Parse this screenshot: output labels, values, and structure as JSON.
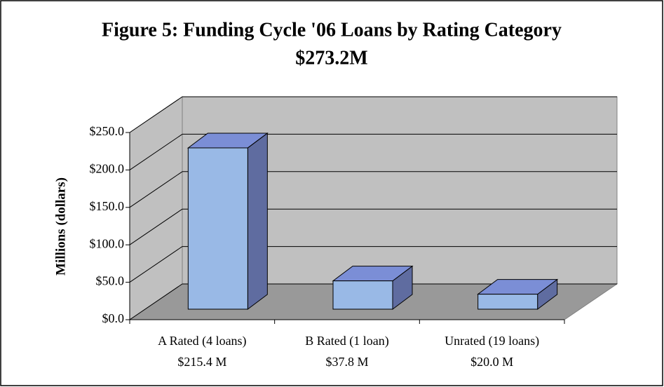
{
  "chart_data": {
    "type": "bar3d",
    "title": "Figure 5: Funding Cycle '06 Loans by Rating Category",
    "subtitle": "$273.2M",
    "y_label": "Millions (dollars)",
    "categories": [
      "A Rated (4 loans)",
      "B Rated (1 loan)",
      "Unrated (19 loans)"
    ],
    "values": [
      215.4,
      37.8,
      20.0
    ],
    "value_labels": [
      "$215.4 M",
      "$37.8 M",
      "$20.0 M"
    ],
    "color": "#99b9e6",
    "ylim": [
      0,
      250
    ],
    "yticks": [
      {
        "value": 0,
        "label": "$0.0"
      },
      {
        "value": 50,
        "label": "$50.0"
      },
      {
        "value": 100,
        "label": "$100.0"
      },
      {
        "value": 150,
        "label": "$150.0"
      },
      {
        "value": 200,
        "label": "$200.0"
      },
      {
        "value": 250,
        "label": "$250.0"
      }
    ],
    "grid": true
  }
}
